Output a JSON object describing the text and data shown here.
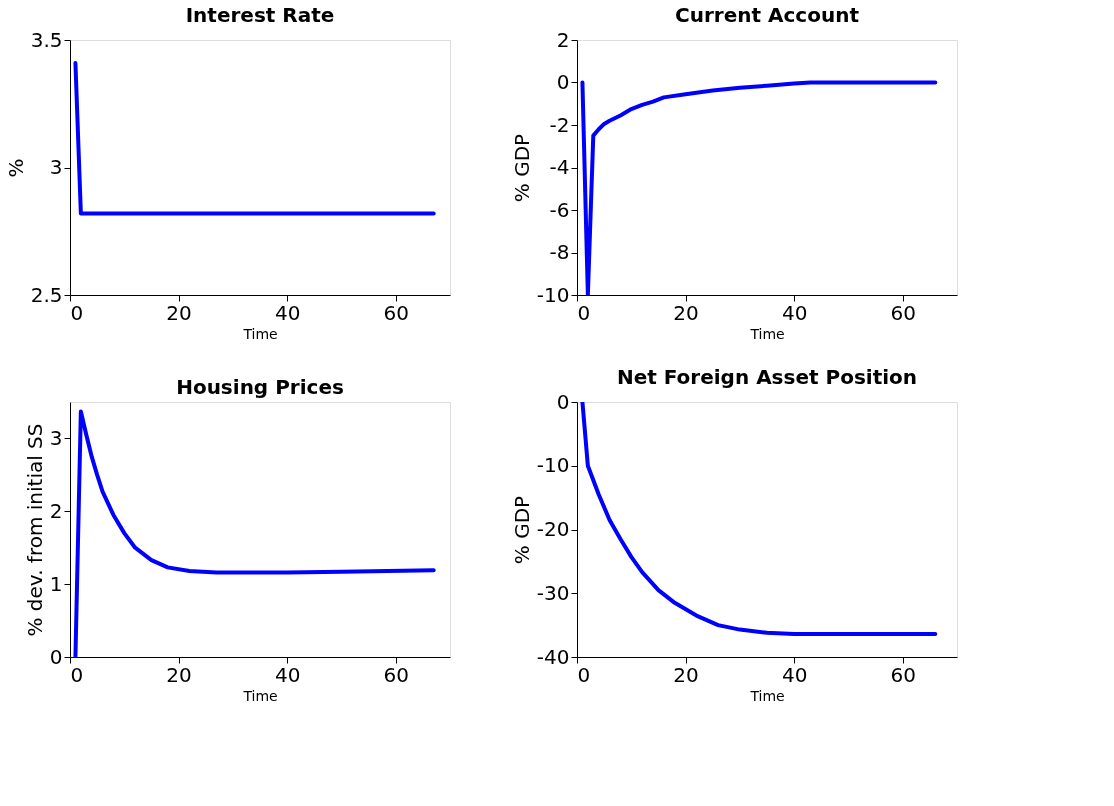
{
  "chart_data": [
    {
      "type": "line",
      "title": "Interest Rate",
      "xlabel": "Time",
      "ylabel": "%",
      "xlim": [
        0,
        70
      ],
      "xticks": [
        0,
        20,
        40,
        60
      ],
      "ylim": [
        2.5,
        3.5
      ],
      "yticks": [
        2.5,
        3,
        3.5
      ],
      "grid": false,
      "series": [
        {
          "color": "#0000ff",
          "x": [
            1,
            2,
            67
          ],
          "values": [
            3.41,
            2.82,
            2.82
          ]
        }
      ]
    },
    {
      "type": "line",
      "title": "Current Account",
      "xlabel": "Time",
      "ylabel": "% GDP",
      "xlim": [
        0,
        70
      ],
      "xticks": [
        0,
        20,
        40,
        60
      ],
      "ylim": [
        -10,
        2
      ],
      "yticks": [
        -10,
        -8,
        -6,
        -4,
        -2,
        0,
        2
      ],
      "grid": false,
      "series": [
        {
          "color": "#0000ff",
          "x": [
            1,
            2,
            3,
            4,
            5,
            6,
            8,
            10,
            12,
            14,
            16,
            20,
            25,
            30,
            35,
            40,
            43,
            66
          ],
          "values": [
            0,
            -10,
            -2.5,
            -2.2,
            -1.95,
            -1.8,
            -1.55,
            -1.25,
            -1.05,
            -0.9,
            -0.7,
            -0.55,
            -0.38,
            -0.25,
            -0.15,
            -0.05,
            0,
            0
          ]
        }
      ]
    },
    {
      "type": "line",
      "title": "Housing Prices",
      "xlabel": "Time",
      "ylabel": "% dev. from initial SS",
      "xlim": [
        0,
        70
      ],
      "xticks": [
        0,
        20,
        40,
        60
      ],
      "ylim": [
        0,
        3.5
      ],
      "yticks": [
        0,
        1,
        2,
        3
      ],
      "grid": false,
      "series": [
        {
          "color": "#0000ff",
          "x": [
            1,
            2,
            3,
            4,
            5,
            6,
            8,
            10,
            12,
            15,
            18,
            22,
            27,
            40,
            50,
            67
          ],
          "values": [
            0,
            3.37,
            3.05,
            2.75,
            2.5,
            2.27,
            1.95,
            1.7,
            1.5,
            1.33,
            1.23,
            1.18,
            1.16,
            1.16,
            1.17,
            1.19
          ]
        }
      ]
    },
    {
      "type": "line",
      "title": "Net Foreign Asset Position",
      "xlabel": "Time",
      "ylabel": "% GDP",
      "xlim": [
        0,
        70
      ],
      "xticks": [
        0,
        20,
        40,
        60
      ],
      "ylim": [
        -40,
        0
      ],
      "yticks": [
        -40,
        -30,
        -20,
        -10,
        0
      ],
      "grid": false,
      "series": [
        {
          "color": "#0000ff",
          "x": [
            1,
            2,
            4,
            6,
            8,
            10,
            12,
            15,
            18,
            22,
            26,
            30,
            35,
            40,
            66
          ],
          "values": [
            0,
            -10,
            -14.5,
            -18.5,
            -21.5,
            -24.3,
            -26.7,
            -29.5,
            -31.5,
            -33.5,
            -35,
            -35.7,
            -36.2,
            -36.4,
            -36.4
          ]
        }
      ]
    }
  ]
}
